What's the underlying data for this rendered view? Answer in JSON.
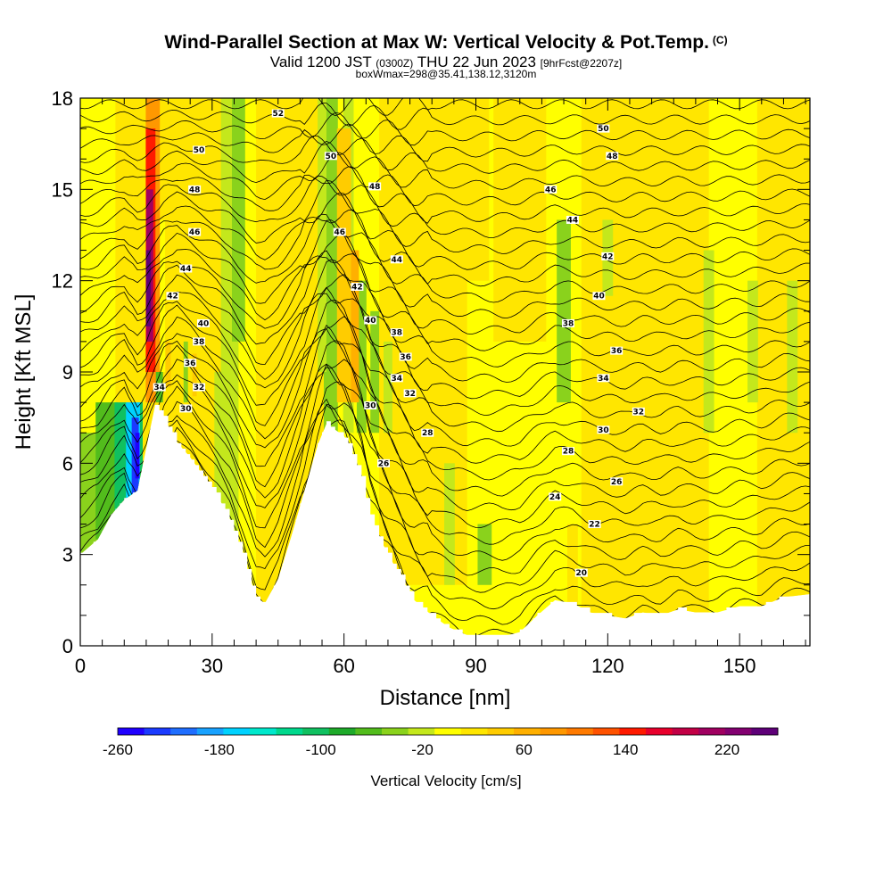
{
  "chart_data": {
    "type": "heatmap",
    "title": "Wind-Parallel Section at Max W: Vertical Velocity & Pot.Temp.",
    "title_tag": "(C)",
    "subtitle": {
      "valid": "Valid 1200 JST",
      "utc": "(0300Z)",
      "date": "THU 22 Jun 2023",
      "fcst": "[9hrFcst@2207z]"
    },
    "subtitle2": "boxWmax=298@35.41,138.12,3120m",
    "xlabel": "Distance [nm]",
    "ylabel": "Height [Kft MSL]",
    "xlim": [
      0,
      166
    ],
    "ylim": [
      0,
      18
    ],
    "x_ticks": [
      "0",
      "30",
      "60",
      "90",
      "120",
      "150"
    ],
    "y_ticks": [
      "0",
      "3",
      "6",
      "9",
      "12",
      "15",
      "18"
    ],
    "colorbar": {
      "label": "Vertical Velocity [cm/s]",
      "range": [
        -260,
        260
      ],
      "tick_labels": [
        "-260",
        "-180",
        "-100",
        "-20",
        "60",
        "140",
        "220"
      ],
      "tick_values": [
        -260,
        -180,
        -100,
        -20,
        60,
        140,
        220
      ],
      "colors": [
        "#1f00ff",
        "#1b3bff",
        "#1f6eff",
        "#18a2ff",
        "#00d2ff",
        "#00e8cc",
        "#00d88c",
        "#10c060",
        "#1eaa2a",
        "#52bc1c",
        "#8ad21c",
        "#c4e81c",
        "#ffff00",
        "#ffe600",
        "#ffcc00",
        "#ffb000",
        "#ff9800",
        "#ff7a00",
        "#ff5200",
        "#ff1a00",
        "#e8002c",
        "#c20045",
        "#a00060",
        "#820070",
        "#5e0078"
      ]
    },
    "terrain_height": [
      [
        0,
        3.0
      ],
      [
        4,
        3.5
      ],
      [
        7,
        4.3
      ],
      [
        10,
        4.8
      ],
      [
        13,
        5.1
      ],
      [
        15,
        6.5
      ],
      [
        17,
        7.9
      ],
      [
        19,
        7.5
      ],
      [
        22,
        6.7
      ],
      [
        25,
        6.2
      ],
      [
        28,
        5.6
      ],
      [
        31,
        5.0
      ],
      [
        34,
        4.2
      ],
      [
        37,
        3.0
      ],
      [
        40,
        1.6
      ],
      [
        42,
        1.4
      ],
      [
        45,
        2.2
      ],
      [
        48,
        3.6
      ],
      [
        51,
        5.1
      ],
      [
        54,
        6.6
      ],
      [
        56,
        7.3
      ],
      [
        58,
        7.1
      ],
      [
        60,
        6.9
      ],
      [
        62,
        6.3
      ],
      [
        64,
        5.5
      ],
      [
        66,
        4.3
      ],
      [
        69,
        3.3
      ],
      [
        72,
        2.5
      ],
      [
        76,
        1.5
      ],
      [
        80,
        1.0
      ],
      [
        84,
        0.6
      ],
      [
        88,
        0.35
      ],
      [
        92,
        0.3
      ],
      [
        96,
        0.3
      ],
      [
        100,
        0.45
      ],
      [
        104,
        1.0
      ],
      [
        108,
        1.5
      ],
      [
        112,
        1.4
      ],
      [
        116,
        1.1
      ],
      [
        120,
        1.0
      ],
      [
        124,
        0.9
      ],
      [
        128,
        1.1
      ],
      [
        132,
        1.0
      ],
      [
        136,
        1.2
      ],
      [
        140,
        1.1
      ],
      [
        145,
        1.1
      ],
      [
        150,
        1.3
      ],
      [
        155,
        1.3
      ],
      [
        160,
        1.6
      ],
      [
        166,
        1.7
      ]
    ],
    "theta_contours": {
      "unit": "C",
      "levels": [
        20,
        22,
        24,
        26,
        28,
        30,
        32,
        34,
        36,
        38,
        40,
        42,
        44,
        46,
        48,
        50,
        52
      ],
      "labeled": [
        {
          "x": 24,
          "y": 7.8,
          "text": "30"
        },
        {
          "x": 27,
          "y": 8.5,
          "text": "32"
        },
        {
          "x": 18,
          "y": 8.5,
          "text": "34"
        },
        {
          "x": 25,
          "y": 9.3,
          "text": "36"
        },
        {
          "x": 27,
          "y": 10.0,
          "text": "38"
        },
        {
          "x": 28,
          "y": 10.6,
          "text": "40"
        },
        {
          "x": 21,
          "y": 11.5,
          "text": "42"
        },
        {
          "x": 24,
          "y": 12.4,
          "text": "44"
        },
        {
          "x": 26,
          "y": 13.6,
          "text": "46"
        },
        {
          "x": 26,
          "y": 15.0,
          "text": "48"
        },
        {
          "x": 27,
          "y": 16.3,
          "text": "50"
        },
        {
          "x": 45,
          "y": 17.5,
          "text": "52"
        },
        {
          "x": 57,
          "y": 16.1,
          "text": "50"
        },
        {
          "x": 59,
          "y": 13.6,
          "text": "46"
        },
        {
          "x": 67,
          "y": 15.1,
          "text": "48"
        },
        {
          "x": 63,
          "y": 11.8,
          "text": "42"
        },
        {
          "x": 66,
          "y": 10.7,
          "text": "40"
        },
        {
          "x": 72,
          "y": 10.3,
          "text": "38"
        },
        {
          "x": 74,
          "y": 9.5,
          "text": "36"
        },
        {
          "x": 72,
          "y": 8.8,
          "text": "34"
        },
        {
          "x": 75,
          "y": 8.3,
          "text": "32"
        },
        {
          "x": 66,
          "y": 7.9,
          "text": "30"
        },
        {
          "x": 79,
          "y": 7.0,
          "text": "28"
        },
        {
          "x": 69,
          "y": 6.0,
          "text": "26"
        },
        {
          "x": 72,
          "y": 12.7,
          "text": "44"
        },
        {
          "x": 107,
          "y": 15.0,
          "text": "46"
        },
        {
          "x": 112,
          "y": 14.0,
          "text": "44"
        },
        {
          "x": 120,
          "y": 12.8,
          "text": "42"
        },
        {
          "x": 118,
          "y": 11.5,
          "text": "40"
        },
        {
          "x": 111,
          "y": 10.6,
          "text": "38"
        },
        {
          "x": 122,
          "y": 9.7,
          "text": "36"
        },
        {
          "x": 119,
          "y": 8.8,
          "text": "34"
        },
        {
          "x": 127,
          "y": 7.7,
          "text": "32"
        },
        {
          "x": 119,
          "y": 7.1,
          "text": "30"
        },
        {
          "x": 111,
          "y": 6.4,
          "text": "28"
        },
        {
          "x": 122,
          "y": 5.4,
          "text": "26"
        },
        {
          "x": 108,
          "y": 4.9,
          "text": "24"
        },
        {
          "x": 117,
          "y": 4.0,
          "text": "22"
        },
        {
          "x": 114,
          "y": 2.4,
          "text": "20"
        },
        {
          "x": 119,
          "y": 17.0,
          "text": "50"
        },
        {
          "x": 121,
          "y": 16.1,
          "text": "48"
        }
      ]
    },
    "wmax_cm_s": 298
  }
}
